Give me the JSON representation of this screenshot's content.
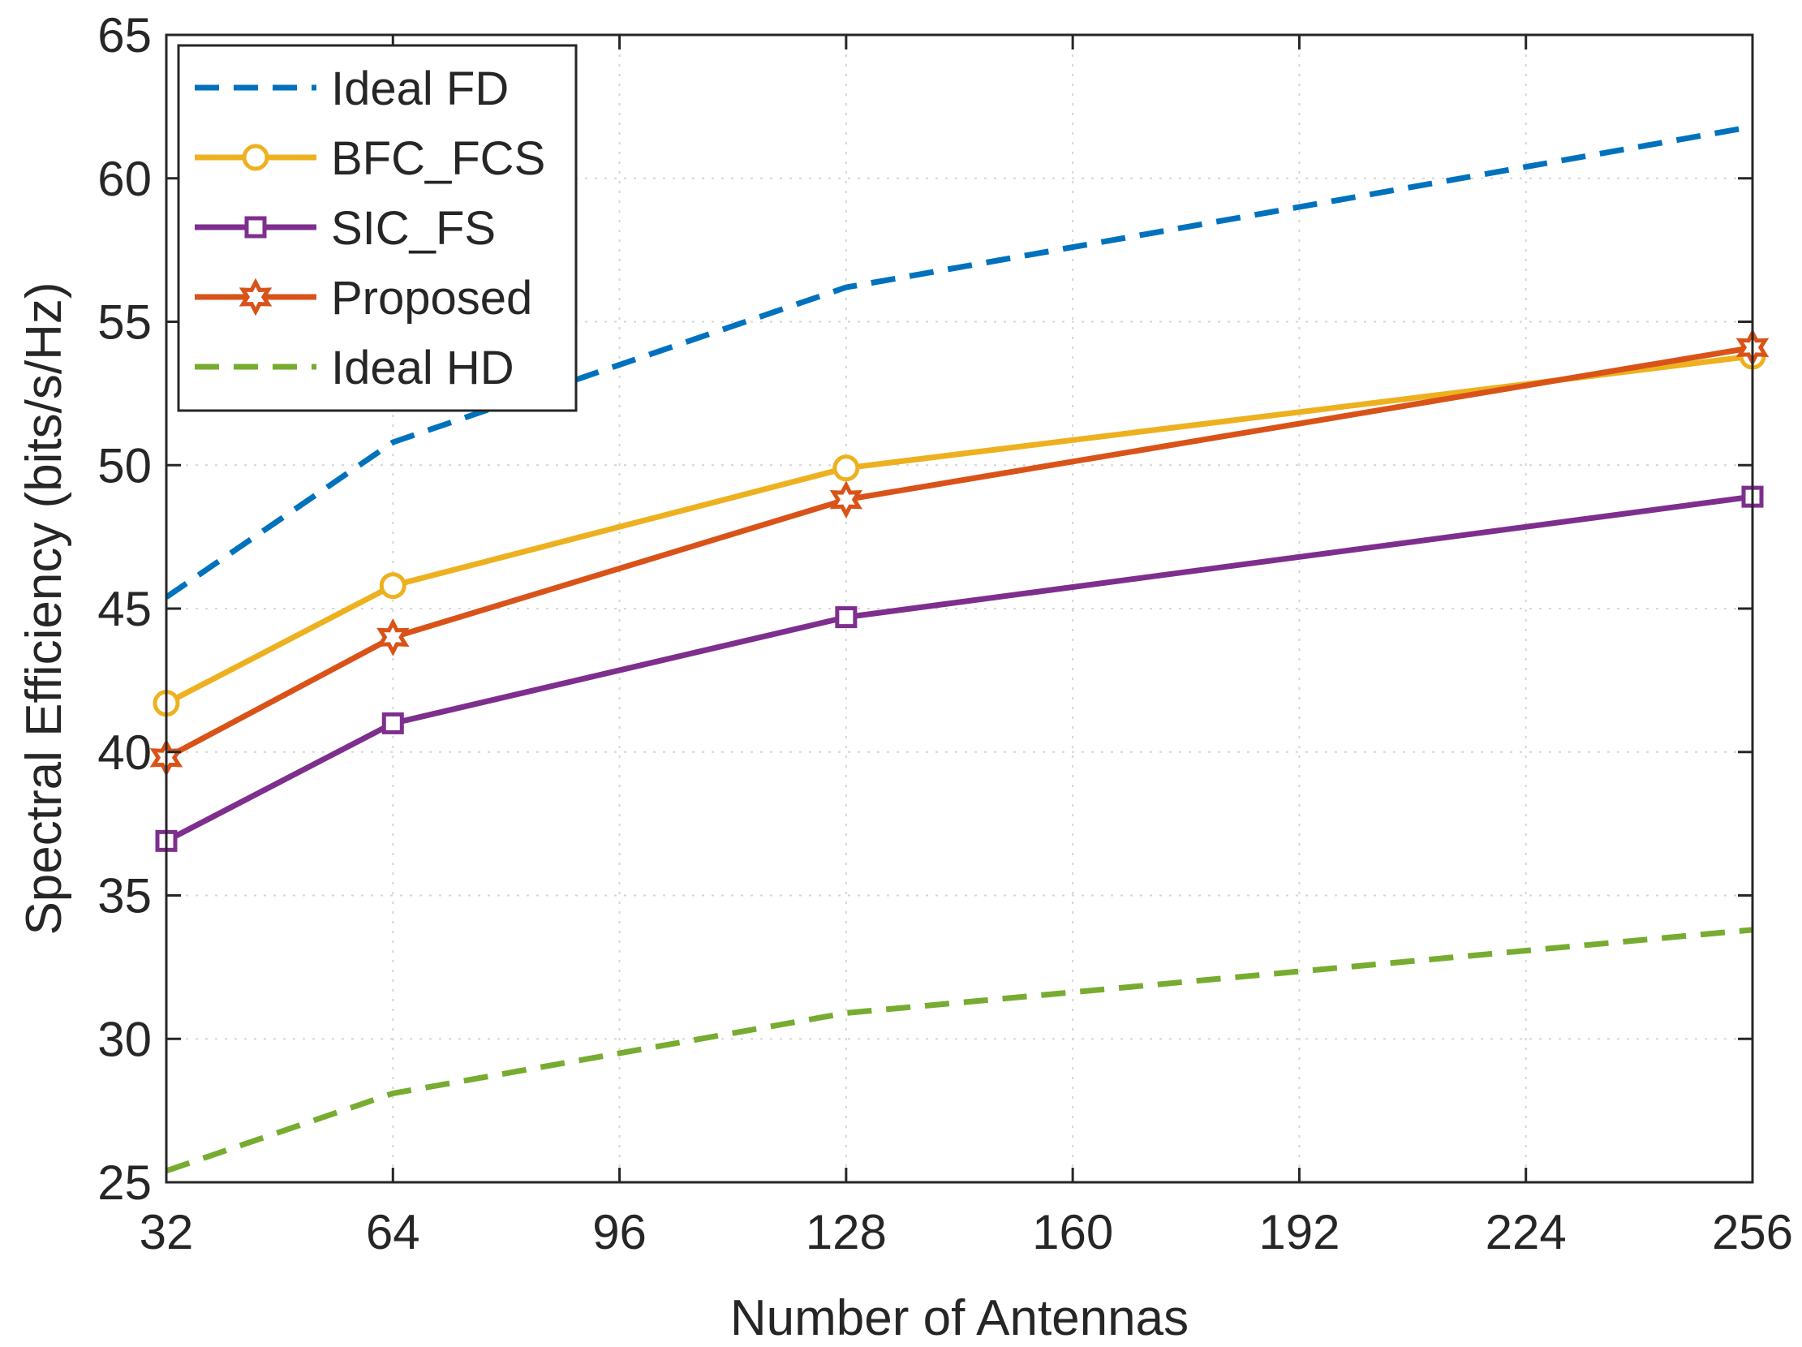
{
  "chart_data": {
    "type": "line",
    "title": "",
    "xlabel": "Number of Antennas",
    "ylabel": "Spectral Efficiency (bits/s/Hz)",
    "xlim": [
      32,
      256
    ],
    "ylim": [
      25,
      65
    ],
    "xticks": [
      32,
      64,
      96,
      128,
      160,
      192,
      224,
      256
    ],
    "yticks": [
      25,
      30,
      35,
      40,
      45,
      50,
      55,
      60,
      65
    ],
    "grid": true,
    "legend_position": "top-left",
    "x": [
      32,
      64,
      128,
      256
    ],
    "series": [
      {
        "name": "Ideal FD",
        "values": [
          45.4,
          50.8,
          56.2,
          61.8
        ],
        "color": "#0072BD",
        "dash": true,
        "marker": "none"
      },
      {
        "name": "BFC_FCS",
        "values": [
          41.7,
          45.8,
          49.9,
          53.8
        ],
        "color": "#EDB120",
        "dash": false,
        "marker": "circle"
      },
      {
        "name": "SIC_FS",
        "values": [
          36.9,
          41.0,
          44.7,
          48.9
        ],
        "color": "#7E2F8E",
        "dash": false,
        "marker": "square"
      },
      {
        "name": "Proposed",
        "values": [
          39.8,
          44.0,
          48.8,
          54.1
        ],
        "color": "#D95319",
        "dash": false,
        "marker": "hexagram"
      },
      {
        "name": "Ideal HD",
        "values": [
          25.4,
          28.1,
          30.9,
          33.8
        ],
        "color": "#77AC30",
        "dash": true,
        "marker": "none"
      }
    ]
  }
}
